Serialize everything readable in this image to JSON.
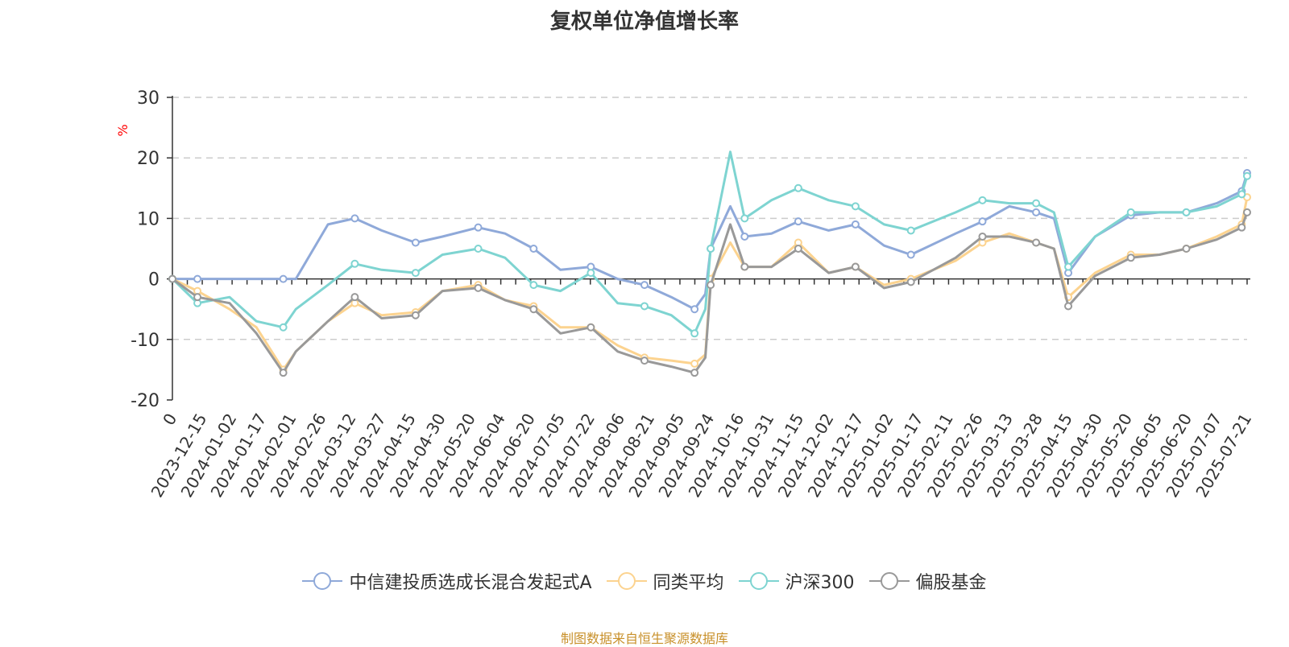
{
  "chart_data": {
    "type": "line",
    "title": "复权单位净值增长率",
    "ylabel": "%",
    "ylim": [
      -20,
      30
    ],
    "yticks": [
      -20,
      -10,
      0,
      10,
      20,
      30
    ],
    "grid": true,
    "legend_position": "bottom",
    "x_tick_labels": [
      "0",
      "2023-12-15",
      "2024-01-02",
      "2024-01-17",
      "2024-02-01",
      "2024-02-26",
      "2024-03-12",
      "2024-03-27",
      "2024-04-15",
      "2024-04-30",
      "2024-05-20",
      "2024-06-04",
      "2024-06-20",
      "2024-07-05",
      "2024-07-22",
      "2024-08-06",
      "2024-08-21",
      "2024-09-05",
      "2024-09-24",
      "2024-10-16",
      "2024-10-31",
      "2024-11-15",
      "2024-12-02",
      "2024-12-17",
      "2025-01-02",
      "2025-01-17",
      "2025-02-11",
      "2025-02-26",
      "2025-03-13",
      "2025-03-28",
      "2025-04-15",
      "2025-04-30",
      "2025-05-20",
      "2025-06-05",
      "2025-06-20",
      "2025-07-07",
      "2025-07-21"
    ],
    "x": [
      "2023-12-01",
      "2023-12-15",
      "2024-01-02",
      "2024-01-17",
      "2024-02-01",
      "2024-02-08",
      "2024-02-26",
      "2024-03-12",
      "2024-03-27",
      "2024-04-15",
      "2024-04-30",
      "2024-05-20",
      "2024-06-04",
      "2024-06-20",
      "2024-07-05",
      "2024-07-22",
      "2024-08-06",
      "2024-08-21",
      "2024-09-05",
      "2024-09-18",
      "2024-09-24",
      "2024-09-27",
      "2024-10-08",
      "2024-10-16",
      "2024-10-31",
      "2024-11-15",
      "2024-12-02",
      "2024-12-17",
      "2025-01-02",
      "2025-01-17",
      "2025-02-11",
      "2025-02-26",
      "2025-03-13",
      "2025-03-28",
      "2025-04-07",
      "2025-04-15",
      "2025-04-30",
      "2025-05-20",
      "2025-06-05",
      "2025-06-20",
      "2025-07-07",
      "2025-07-21",
      "2025-07-24"
    ],
    "series": [
      {
        "name": "中信建投质选成长混合发起式A",
        "color": "#8fa9d9",
        "values": [
          0,
          0,
          0,
          0,
          0,
          0,
          9,
          10,
          8,
          6,
          7,
          8.5,
          7.5,
          5,
          1.5,
          2,
          0,
          -1,
          -3,
          -5,
          -2.5,
          5,
          12,
          7,
          7.5,
          9.5,
          8,
          9,
          5.5,
          4,
          7.5,
          9.5,
          12,
          11,
          10,
          1,
          7,
          10.5,
          11,
          11,
          12.5,
          14.5,
          17.5
        ]
      },
      {
        "name": "同类平均",
        "color": "#fcd38f",
        "values": [
          0,
          -2,
          -5,
          -8,
          -15,
          -12,
          -7,
          -4,
          -6,
          -5.5,
          -2,
          -1,
          -3.5,
          -4.5,
          -8,
          -8,
          -11,
          -13,
          -13.5,
          -14,
          -12.5,
          0,
          6,
          2,
          2,
          6,
          1,
          2,
          -1,
          0,
          3,
          6,
          7.5,
          6,
          5,
          -3,
          1,
          4,
          4,
          5,
          7,
          9,
          13.5
        ]
      },
      {
        "name": "沪深300",
        "color": "#7ed4d1",
        "values": [
          0,
          -4,
          -3,
          -7,
          -8,
          -5,
          -1,
          2.5,
          1.5,
          1,
          4,
          5,
          3.5,
          -1,
          -2,
          1,
          -4,
          -4.5,
          -6,
          -9,
          -5,
          5,
          21,
          10,
          13,
          15,
          13,
          12,
          9,
          8,
          11,
          13,
          12.5,
          12.5,
          11,
          2,
          7,
          11,
          11,
          11,
          12,
          14,
          17
        ]
      },
      {
        "name": "偏股基金",
        "color": "#999999",
        "values": [
          0,
          -3,
          -4,
          -9,
          -15.5,
          -12,
          -7,
          -3,
          -6.5,
          -6,
          -2,
          -1.5,
          -3.5,
          -5,
          -9,
          -8,
          -12,
          -13.5,
          -14.5,
          -15.5,
          -13,
          -1,
          9,
          2,
          2,
          5,
          1,
          2,
          -1.5,
          -0.5,
          3.5,
          7,
          7,
          6,
          5,
          -4.5,
          0.5,
          3.5,
          4,
          5,
          6.5,
          8.5,
          11
        ]
      }
    ]
  },
  "footer": "制图数据来自恒生聚源数据库"
}
